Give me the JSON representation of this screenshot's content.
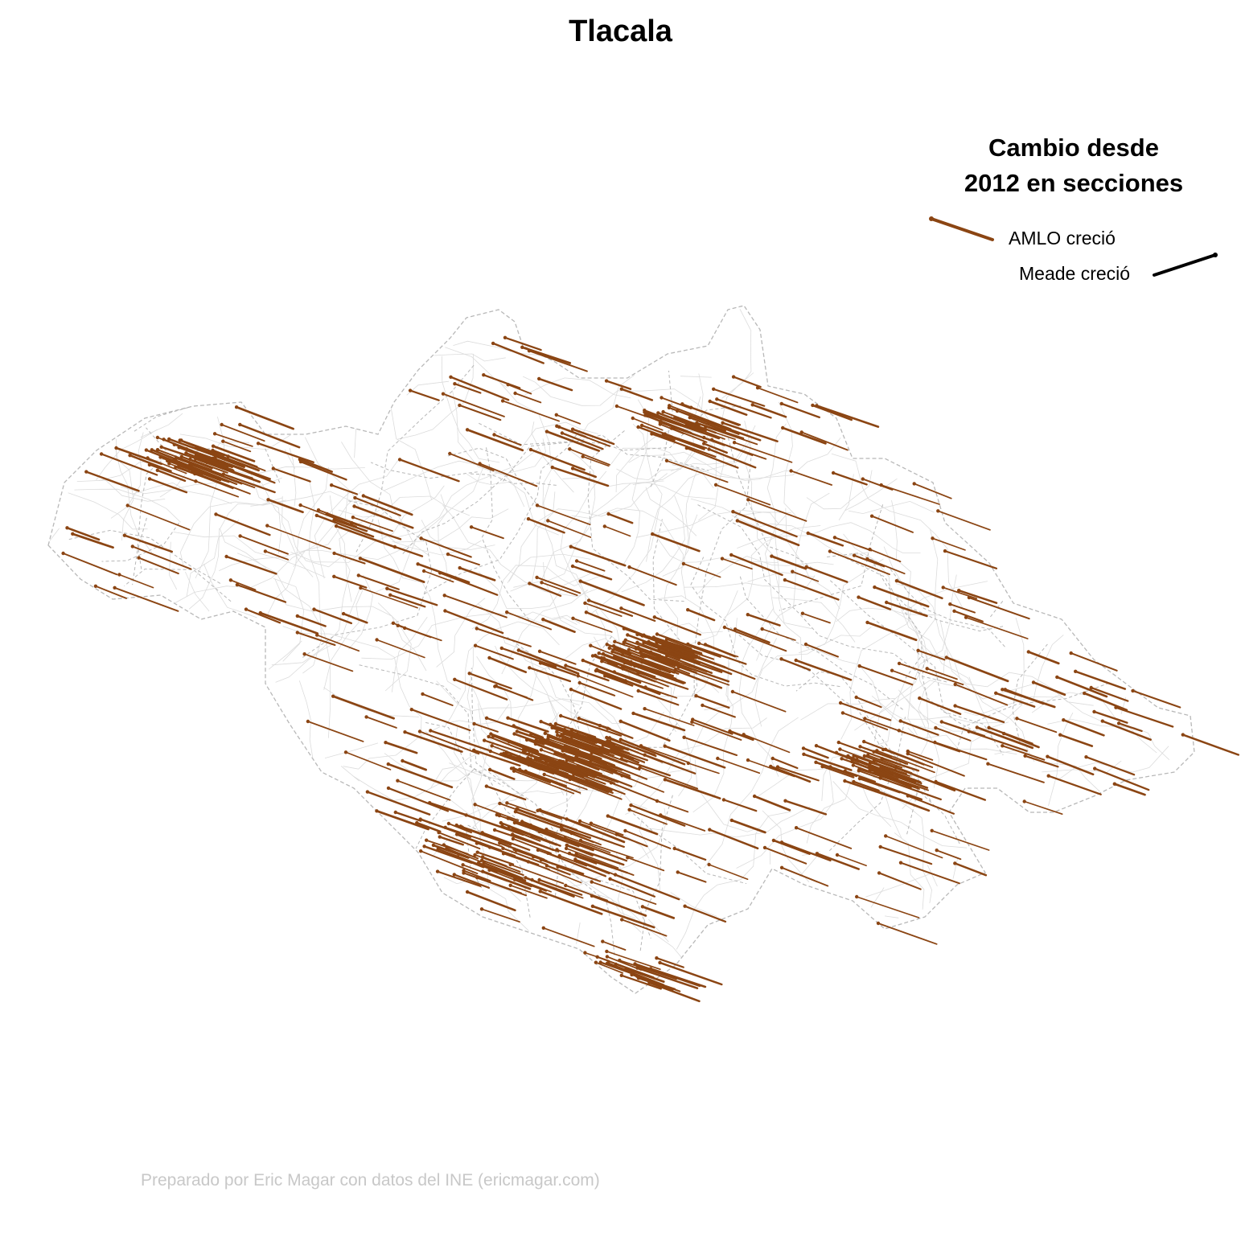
{
  "title": "Tlacala",
  "legend": {
    "title_line1": "Cambio desde",
    "title_line2": "2012 en secciones",
    "items": [
      {
        "label": "AMLO creció",
        "color": "#8B4513"
      },
      {
        "label": "Meade creció",
        "color": "#000000"
      }
    ]
  },
  "credit": "Preparado por Eric Magar con datos del INE (ericmagar.com)",
  "colors": {
    "amlo_arrow": "#8B4513",
    "meade_arrow": "#000000",
    "municipal_border": "#b8b8b8",
    "section_border": "#dcdcdc"
  }
}
